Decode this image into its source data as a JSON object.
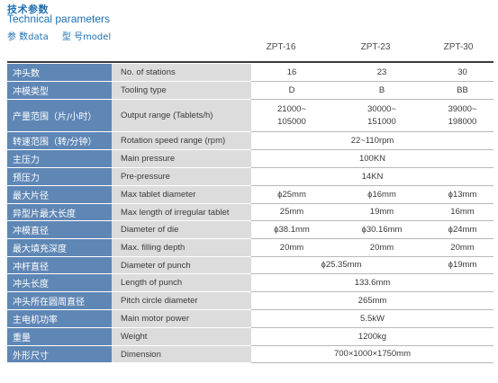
{
  "header": {
    "title_cn": "技术参数",
    "title_en": "Technical parameters",
    "param_label": "参 数data",
    "model_label": "型 号model"
  },
  "models": [
    "ZPT-16",
    "ZPT-23",
    "ZPT-30"
  ],
  "rows": [
    {
      "cn": "冲头数",
      "en": "No. of stations",
      "vals": [
        "16",
        "23",
        "30"
      ]
    },
    {
      "cn": "冲模类型",
      "en": "Tooling type",
      "vals": [
        "D",
        "B",
        "BB"
      ]
    },
    {
      "cn": "产量范围（片/小时）",
      "en": "Output range (Tablets/h)",
      "vals": [
        "21000~\n105000",
        "30000~\n151000",
        "39000~\n198000"
      ]
    },
    {
      "cn": "转速范围（转/分钟）",
      "en": "Rotation speed range (rpm)",
      "vals": [
        "22~110rpm"
      ]
    },
    {
      "cn": "主压力",
      "en": "Main pressure",
      "vals": [
        "100KN"
      ]
    },
    {
      "cn": "预压力",
      "en": "Pre-pressure",
      "vals": [
        "14KN"
      ]
    },
    {
      "cn": "最大片径",
      "en": "Max tablet diameter",
      "vals": [
        "ϕ25mm",
        "ϕ16mm",
        "ϕ13mm"
      ]
    },
    {
      "cn": "异型片最大长度",
      "en": "Max length of irregular tablet",
      "vals": [
        "25mm",
        "19mm",
        "16mm"
      ]
    },
    {
      "cn": "冲模直径",
      "en": "Diameter of die",
      "vals": [
        "ϕ38.1mm",
        "ϕ30.16mm",
        "ϕ24mm"
      ]
    },
    {
      "cn": "最大填充深度",
      "en": "Max. filling depth",
      "vals": [
        "20mm",
        "20mm",
        "20mm"
      ]
    },
    {
      "cn": "冲杆直径",
      "en": "Diameter of punch",
      "vals": [
        "ϕ25.35mm",
        "ϕ19mm"
      ]
    },
    {
      "cn": "冲头长度",
      "en": "Length of punch",
      "vals": [
        "133.6mm"
      ]
    },
    {
      "cn": "冲头所在圆周直径",
      "en": "Pitch circle diameter",
      "vals": [
        "265mm"
      ]
    },
    {
      "cn": "主电机功率",
      "en": "Main motor power",
      "vals": [
        "5.5kW"
      ]
    },
    {
      "cn": "重量",
      "en": "Weight",
      "vals": [
        "1200kg"
      ]
    },
    {
      "cn": "外形尺寸",
      "en": "Dimension",
      "vals": [
        "700×1000×1750mm"
      ]
    }
  ]
}
